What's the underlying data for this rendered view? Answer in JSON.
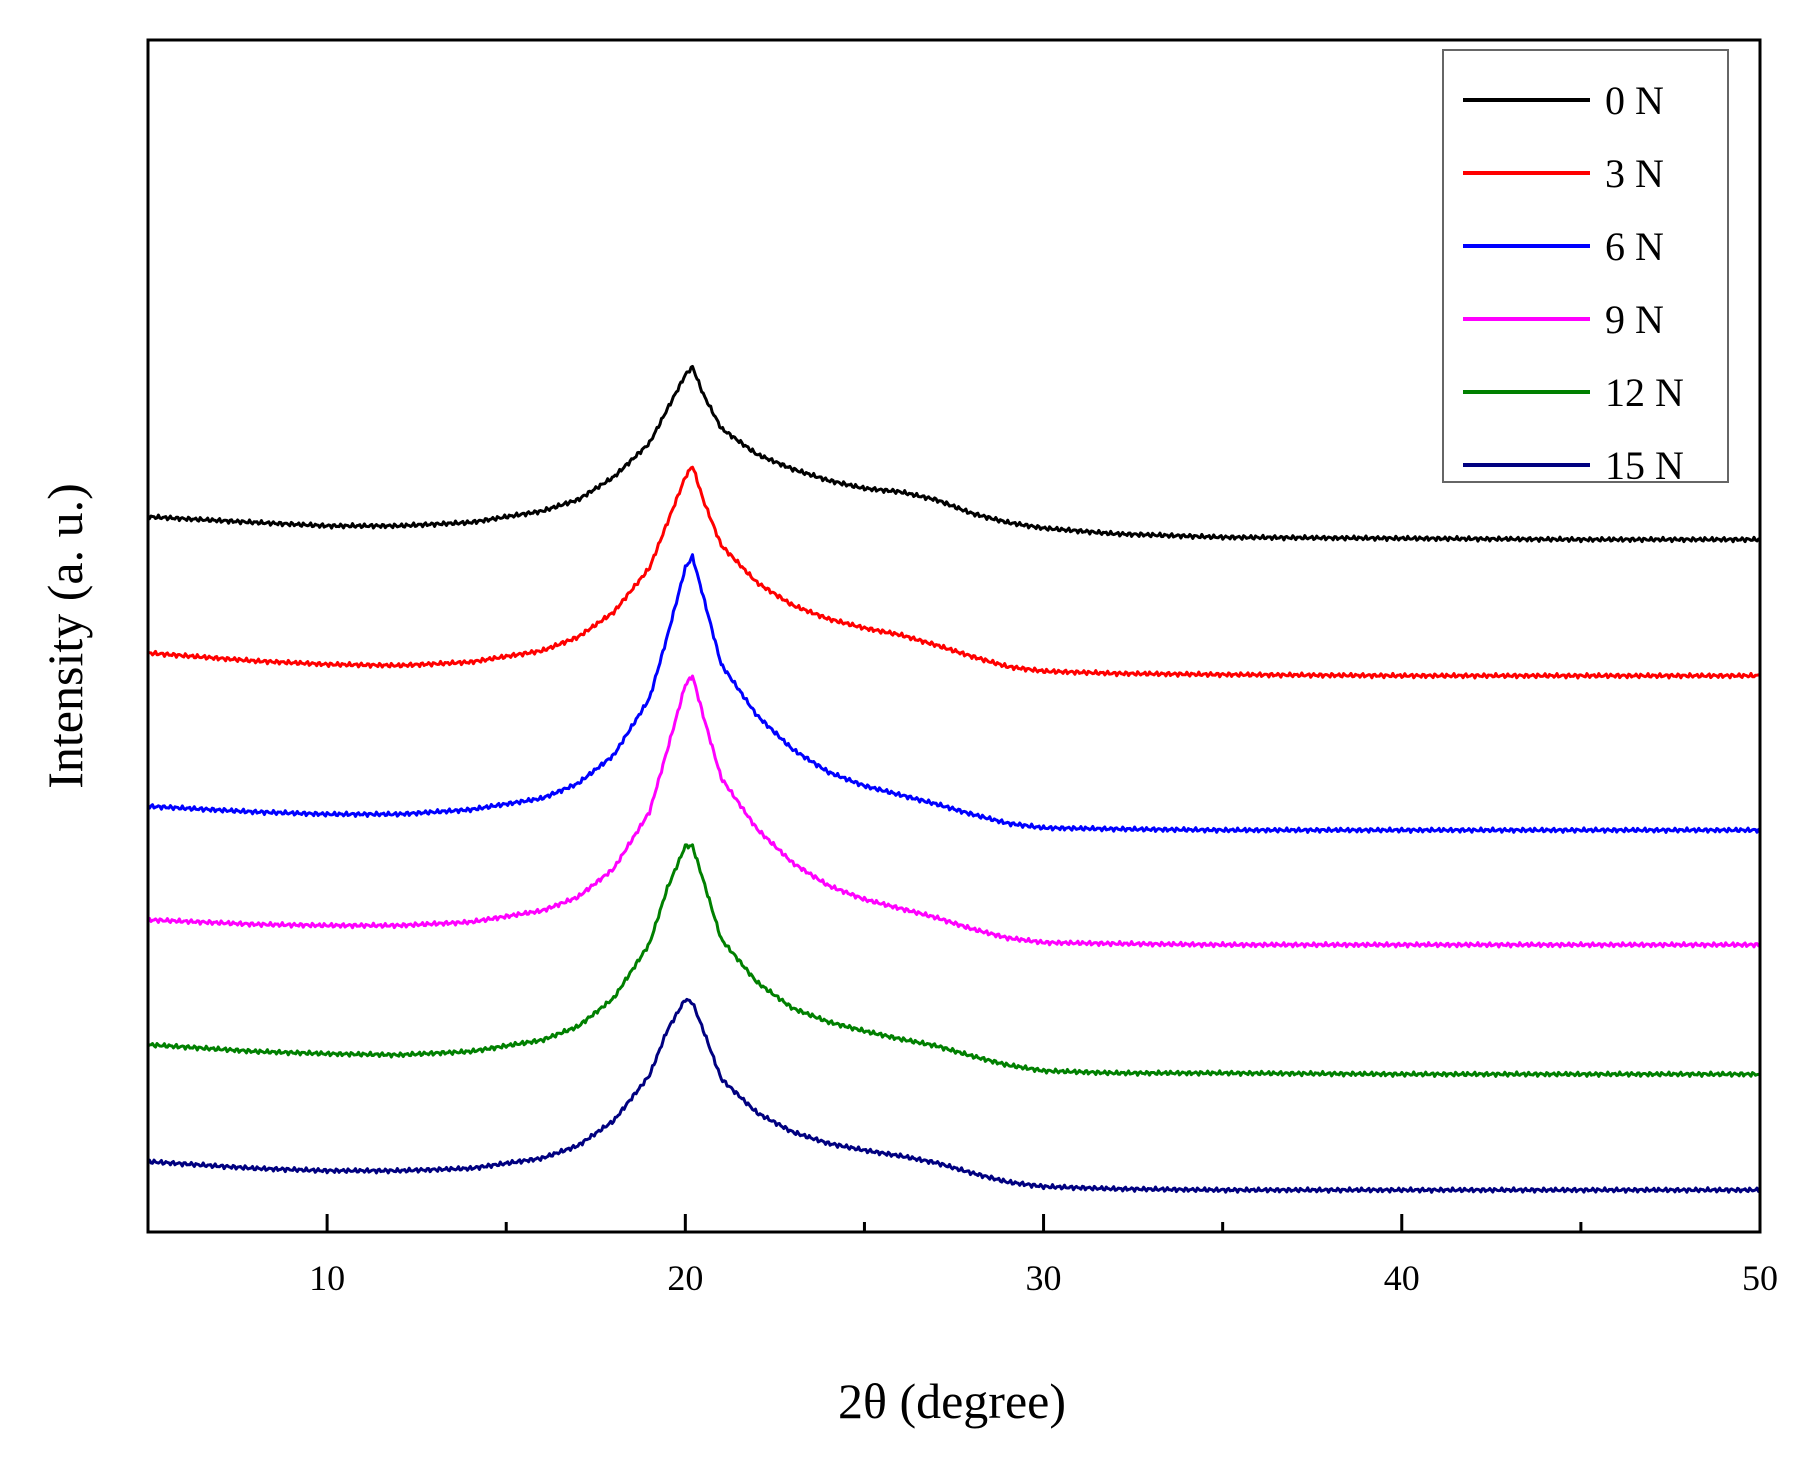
{
  "chart_data": {
    "type": "line",
    "title": "",
    "xlabel": "2θ (degree)",
    "ylabel": "Intensity (a. u.)",
    "xlim": [
      5,
      50
    ],
    "ylim": [
      0,
      10.5
    ],
    "x_ticks": [
      10,
      20,
      30,
      40,
      50
    ],
    "x_minor_ticks": [
      15,
      25,
      35,
      45
    ],
    "y_ticks_shown": false,
    "legend_position": "top-right",
    "x": [
      5,
      8,
      10,
      12,
      14,
      16,
      17,
      18,
      19,
      19.5,
      20,
      20.2,
      20.5,
      21,
      22,
      23,
      24,
      25,
      26,
      27,
      28,
      29,
      30,
      32,
      35,
      40,
      45,
      50
    ],
    "series": [
      {
        "name": "0 N",
        "color": "#000000",
        "values": [
          6.3,
          6.25,
          6.22,
          6.22,
          6.25,
          6.35,
          6.45,
          6.65,
          6.95,
          7.25,
          7.55,
          7.62,
          7.38,
          7.08,
          6.85,
          6.72,
          6.62,
          6.55,
          6.52,
          6.45,
          6.33,
          6.25,
          6.2,
          6.15,
          6.12,
          6.11,
          6.1,
          6.1
        ]
      },
      {
        "name": "3 N",
        "color": "#ff0000",
        "values": [
          5.1,
          5.03,
          5.0,
          4.99,
          5.02,
          5.12,
          5.24,
          5.46,
          5.85,
          6.25,
          6.65,
          6.75,
          6.45,
          6.05,
          5.72,
          5.52,
          5.4,
          5.32,
          5.26,
          5.17,
          5.07,
          4.98,
          4.94,
          4.92,
          4.91,
          4.9,
          4.9,
          4.9
        ]
      },
      {
        "name": "6 N",
        "color": "#0000ff",
        "values": [
          3.75,
          3.7,
          3.68,
          3.68,
          3.72,
          3.82,
          3.95,
          4.2,
          4.7,
          5.25,
          5.85,
          5.95,
          5.6,
          5.0,
          4.55,
          4.25,
          4.05,
          3.93,
          3.85,
          3.77,
          3.68,
          3.6,
          3.56,
          3.55,
          3.54,
          3.54,
          3.54,
          3.54
        ]
      },
      {
        "name": "9 N",
        "color": "#ff00ff",
        "values": [
          2.75,
          2.71,
          2.7,
          2.7,
          2.73,
          2.83,
          2.95,
          3.2,
          3.7,
          4.25,
          4.82,
          4.9,
          4.55,
          4.0,
          3.55,
          3.25,
          3.05,
          2.93,
          2.85,
          2.77,
          2.67,
          2.59,
          2.55,
          2.54,
          2.53,
          2.53,
          2.53,
          2.53
        ]
      },
      {
        "name": "12 N",
        "color": "#008000",
        "values": [
          1.65,
          1.59,
          1.57,
          1.56,
          1.59,
          1.69,
          1.81,
          2.06,
          2.54,
          3.03,
          3.4,
          3.4,
          3.1,
          2.58,
          2.2,
          1.97,
          1.85,
          1.77,
          1.7,
          1.64,
          1.55,
          1.47,
          1.42,
          1.4,
          1.4,
          1.39,
          1.39,
          1.39
        ]
      },
      {
        "name": "15 N",
        "color": "#000080",
        "values": [
          0.62,
          0.56,
          0.54,
          0.54,
          0.56,
          0.65,
          0.76,
          0.98,
          1.38,
          1.78,
          2.05,
          2.02,
          1.78,
          1.35,
          1.05,
          0.88,
          0.78,
          0.72,
          0.67,
          0.61,
          0.52,
          0.44,
          0.4,
          0.38,
          0.37,
          0.37,
          0.37,
          0.37
        ]
      }
    ]
  }
}
